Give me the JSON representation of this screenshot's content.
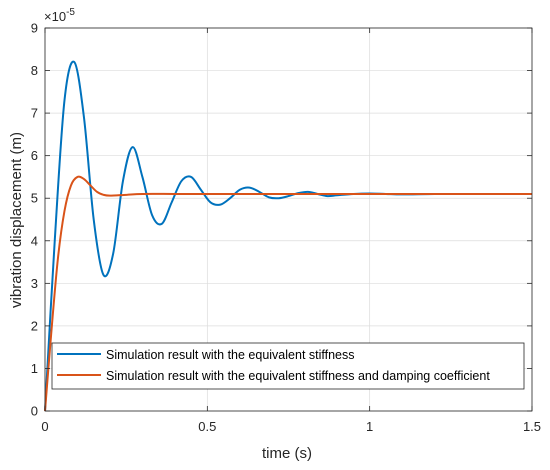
{
  "chart_data": {
    "type": "line",
    "xlabel": "time (s)",
    "ylabel": "vibration displacement (m)",
    "y_exponent_label": "×10",
    "y_exponent_power": "-5",
    "xlim": [
      0,
      1.5
    ],
    "ylim": [
      0,
      9
    ],
    "x_ticks": [
      0,
      0.5,
      1,
      1.5
    ],
    "x_tick_labels": [
      "0",
      "0.5",
      "1",
      "1.5"
    ],
    "y_ticks": [
      0,
      1,
      2,
      3,
      4,
      5,
      6,
      7,
      8,
      9
    ],
    "y_tick_labels": [
      "0",
      "1",
      "2",
      "3",
      "4",
      "5",
      "6",
      "7",
      "8",
      "9"
    ],
    "grid": true,
    "legend_position": "bottom-left",
    "series": [
      {
        "name": "Simulation result with the equivalent stiffness",
        "color": "#0072BD",
        "x": [
          0,
          0.03,
          0.06,
          0.09,
          0.12,
          0.15,
          0.18,
          0.21,
          0.24,
          0.27,
          0.3,
          0.33,
          0.36,
          0.39,
          0.42,
          0.45,
          0.48,
          0.51,
          0.54,
          0.57,
          0.6,
          0.63,
          0.66,
          0.69,
          0.72,
          0.75,
          0.78,
          0.81,
          0.84,
          0.87,
          0.9,
          0.95,
          1.0,
          1.05,
          1.1,
          1.2,
          1.3,
          1.4,
          1.5
        ],
        "y": [
          0,
          4.0,
          7.3,
          8.2,
          6.9,
          4.5,
          3.2,
          3.7,
          5.4,
          6.2,
          5.5,
          4.6,
          4.4,
          4.9,
          5.4,
          5.5,
          5.2,
          4.9,
          4.85,
          5.0,
          5.2,
          5.25,
          5.15,
          5.02,
          5.0,
          5.05,
          5.12,
          5.15,
          5.1,
          5.05,
          5.07,
          5.1,
          5.11,
          5.1,
          5.09,
          5.1,
          5.1,
          5.1,
          5.1
        ]
      },
      {
        "name": "Simulation result with the equivalent stiffness and damping coefficient",
        "color": "#D95319",
        "x": [
          0,
          0.02,
          0.04,
          0.06,
          0.08,
          0.1,
          0.12,
          0.14,
          0.16,
          0.18,
          0.2,
          0.25,
          0.3,
          0.4,
          0.5,
          0.7,
          1.0,
          1.2,
          1.5
        ],
        "y": [
          0,
          1.9,
          3.6,
          4.7,
          5.3,
          5.5,
          5.45,
          5.3,
          5.15,
          5.08,
          5.06,
          5.08,
          5.1,
          5.1,
          5.1,
          5.1,
          5.1,
          5.1,
          5.1
        ]
      }
    ]
  }
}
